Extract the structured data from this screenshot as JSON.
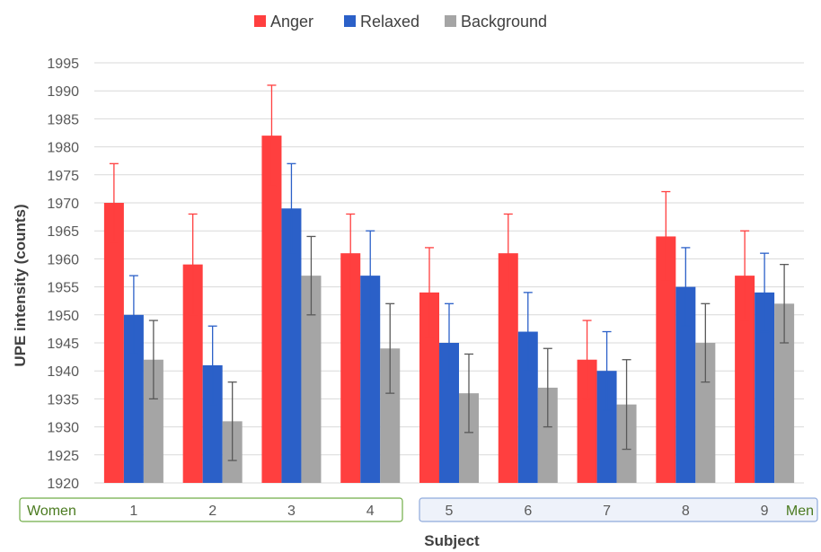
{
  "chart_data": {
    "type": "bar",
    "ylabel": "UPE intensity (counts)",
    "xlabel": "Subject",
    "ylim": [
      1920,
      1995
    ],
    "yticks": [
      1920,
      1925,
      1930,
      1935,
      1940,
      1945,
      1950,
      1955,
      1960,
      1965,
      1970,
      1975,
      1980,
      1985,
      1990,
      1995
    ],
    "grid": true,
    "legend_position": "top-center",
    "categories": [
      "1",
      "2",
      "3",
      "4",
      "5",
      "6",
      "7",
      "8",
      "9"
    ],
    "groups": [
      {
        "label": "Women",
        "categories": [
          "1",
          "2",
          "3",
          "4"
        ],
        "color": "#70ad47",
        "fill": "#ffffff"
      },
      {
        "label": "Men",
        "categories": [
          "5",
          "6",
          "7",
          "8",
          "9"
        ],
        "color": "#8faadc",
        "fill": "#eef2fa"
      }
    ],
    "series": [
      {
        "name": "Anger",
        "color": "#ff3f3f",
        "values": [
          1970,
          1959,
          1982,
          1961,
          1954,
          1961,
          1942,
          1964,
          1957
        ],
        "errors": [
          7,
          9,
          9,
          7,
          8,
          7,
          7,
          8,
          8
        ]
      },
      {
        "name": "Relaxed",
        "color": "#2b60c8",
        "values": [
          1950,
          1941,
          1969,
          1957,
          1945,
          1947,
          1940,
          1955,
          1954
        ],
        "errors": [
          7,
          7,
          8,
          8,
          7,
          7,
          7,
          7,
          7
        ]
      },
      {
        "name": "Background",
        "color": "#a5a5a5",
        "values": [
          1942,
          1931,
          1957,
          1944,
          1936,
          1937,
          1934,
          1945,
          1952
        ],
        "errors": [
          7,
          7,
          7,
          8,
          7,
          7,
          8,
          7,
          7
        ]
      }
    ]
  }
}
